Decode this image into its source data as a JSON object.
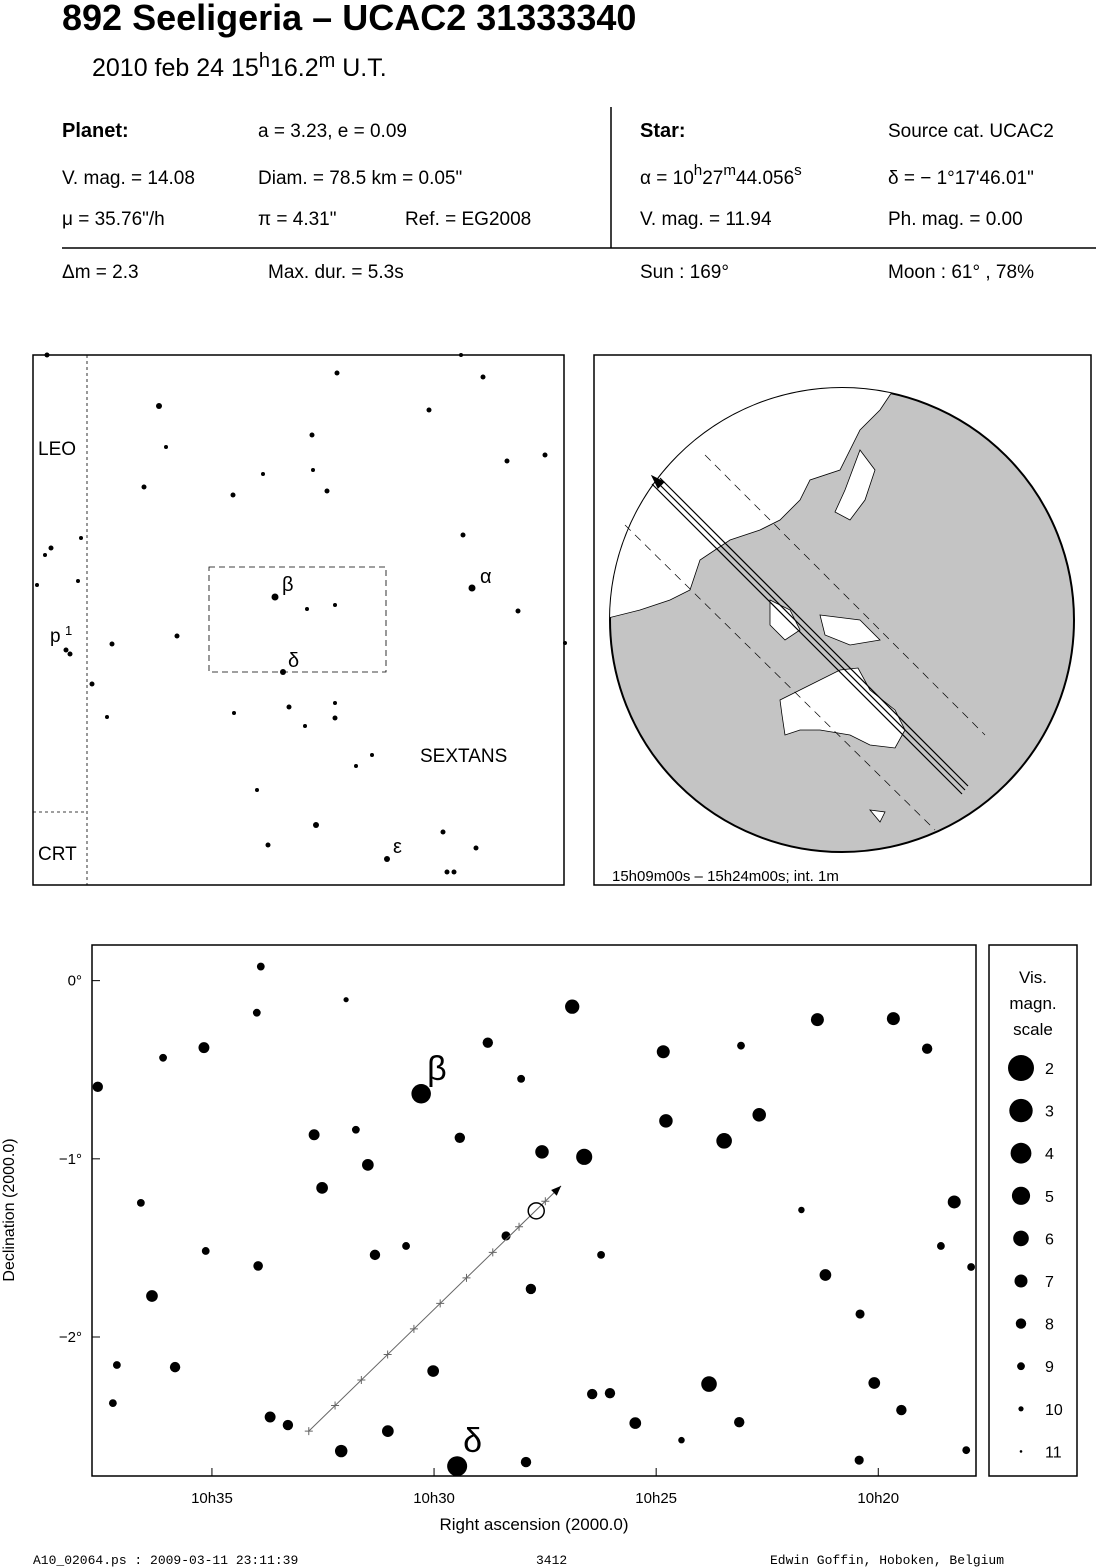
{
  "header": {
    "title": "892 Seeligeria  –  UCAC2 31333340",
    "subtitle": [
      "2010 feb 24  15",
      "h",
      "16.2",
      "m",
      " U.T."
    ]
  },
  "info": {
    "planet_heading": "Planet:",
    "orbit": "a = 3.23, e = 0.09",
    "star_heading": "Star:",
    "source": "Source cat.  UCAC2",
    "planet_mag": "V. mag. = 14.08",
    "diameter": "Diam. = 78.5 km = 0.05\"",
    "ra": [
      "α = 10",
      "h",
      "27",
      "m",
      "44.056",
      "s"
    ],
    "dec": "δ = − 1°17'46.01\"",
    "motion": "μ =  35.76\"/h",
    "parallax": "π =  4.31\"",
    "reference": "Ref. = EG2008",
    "star_mag": "V. mag. = 11.94",
    "photo_mag": "Ph. mag. =  0.00",
    "mag_drop": "Δm = 2.3",
    "duration": "Max. dur. = 5.3s",
    "sun": "Sun : 169°",
    "moon": "Moon :  61° , 78%"
  },
  "finder": {
    "constellations": [
      "LEO",
      "SEXTANS",
      "CRT"
    ],
    "star_names": [
      "β",
      "α",
      "δ",
      "ε"
    ],
    "p1": [
      "p",
      "1"
    ]
  },
  "globe": {
    "caption": "15h09m00s – 15h24m00s; int.  1m"
  },
  "chart_data": {
    "type": "scatter",
    "x_label": "Right ascension (2000.0)",
    "y_label": "Declination (2000.0)",
    "xlim": [
      637.7,
      617.8
    ],
    "ylim": [
      -2.78,
      0.2
    ],
    "xticks": [
      {
        "value": 635,
        "label": "10h35"
      },
      {
        "value": 630,
        "label": "10h30"
      },
      {
        "value": 625,
        "label": "10h25"
      },
      {
        "value": 620,
        "label": "10h20"
      }
    ],
    "yticks": [
      {
        "value": 0,
        "label": "0°"
      },
      {
        "value": -1,
        "label": "−1°"
      },
      {
        "value": -2,
        "label": "−2°"
      }
    ],
    "series": [
      {
        "color": "#000000",
        "x": [
          630.29,
          629.48,
          626.89,
          626.62,
          627.57,
          623.47,
          624.78,
          622.68,
          624.84,
          621.37,
          619.66,
          618.29,
          623.81,
          621.19,
          620.09,
          625.47,
          630.02,
          632.09,
          631.04,
          631.49,
          632.52,
          632.7,
          636.35,
          635.18,
          637.57,
          633.69,
          633.29,
          627.93,
          626.44,
          626.04,
          623.13,
          619.48,
          618.9,
          629.42,
          628.79,
          627.82,
          635.83,
          631.33,
          633.96,
          628.38,
          620.41,
          618.59,
          633.99,
          637.14,
          626.24,
          620.43,
          618.02,
          631.76,
          635.14,
          630.63,
          628.04,
          623.09,
          617.91,
          637.23,
          636.1,
          636.6,
          633.9,
          621.73,
          624.43,
          631.98
        ],
        "values": [
          -0.635,
          -2.725,
          -0.146,
          -0.989,
          -0.961,
          -0.899,
          -0.787,
          -0.753,
          -0.399,
          -0.219,
          -0.213,
          -1.242,
          -2.264,
          -1.652,
          -2.258,
          -2.483,
          -2.191,
          -2.64,
          -2.528,
          -1.034,
          -1.163,
          -0.865,
          -1.77,
          -0.376,
          -0.596,
          -2.449,
          -2.494,
          -2.702,
          -2.32,
          -2.315,
          -2.478,
          -2.41,
          -0.382,
          -0.882,
          -0.348,
          -1.73,
          -2.169,
          -1.539,
          -1.601,
          -1.433,
          -1.871,
          -1.489,
          -0.18,
          -2.157,
          -1.539,
          -2.691,
          -2.635,
          -0.837,
          -1.517,
          -1.489,
          -0.551,
          -0.365,
          -1.607,
          -2.371,
          -0.433,
          -1.247,
          0.079,
          -1.287,
          -2.579,
          -0.107
        ],
        "magnitudes": [
          4.5,
          4.3,
          6.5,
          5.8,
          6.8,
          6.0,
          6.8,
          6.8,
          7.0,
          7.0,
          7.0,
          7.0,
          6.0,
          7.5,
          7.5,
          7.5,
          7.5,
          7.2,
          7.5,
          7.5,
          7.5,
          7.8,
          7.5,
          7.8,
          8.0,
          7.8,
          8.0,
          8.0,
          8.0,
          8.0,
          8.0,
          8.0,
          8.0,
          8.0,
          8.0,
          8.0,
          8.0,
          8.0,
          8.3,
          8.5,
          8.5,
          9.0,
          9.0,
          9.0,
          9.0,
          8.5,
          9.0,
          9.0,
          9.0,
          9.0,
          9.0,
          9.0,
          9.0,
          9.0,
          9.0,
          9.0,
          9.0,
          9.5,
          9.5,
          10.0
        ],
        "labels": [
          "β",
          "δ",
          null,
          null,
          null,
          null,
          null,
          null,
          null,
          null,
          null,
          null,
          null,
          null,
          null,
          null,
          null,
          null,
          null,
          null,
          null,
          null,
          null,
          null,
          null,
          null,
          null,
          null,
          null,
          null,
          null,
          null,
          null,
          null,
          null,
          null,
          null,
          null,
          null,
          null,
          null,
          null,
          null,
          null,
          null,
          null,
          null,
          null,
          null,
          null,
          null,
          null,
          null,
          null,
          null,
          null,
          null,
          null,
          null,
          null
        ]
      }
    ],
    "track": {
      "x": [
        632.82,
        627.14
      ],
      "values": [
        -2.528,
        -1.152
      ]
    },
    "target": {
      "x": 627.7,
      "value": -1.292
    },
    "legend_title": [
      "Vis.",
      "magn.",
      "scale"
    ],
    "legend_magnitudes": [
      2,
      3,
      4,
      5,
      6,
      7,
      8,
      9,
      10,
      11
    ]
  },
  "footer": {
    "file": "A10_02064.ps : 2009-03-11 23:11:39",
    "number": "3412",
    "author": "Edwin Goffin, Hoboken, Belgium"
  }
}
